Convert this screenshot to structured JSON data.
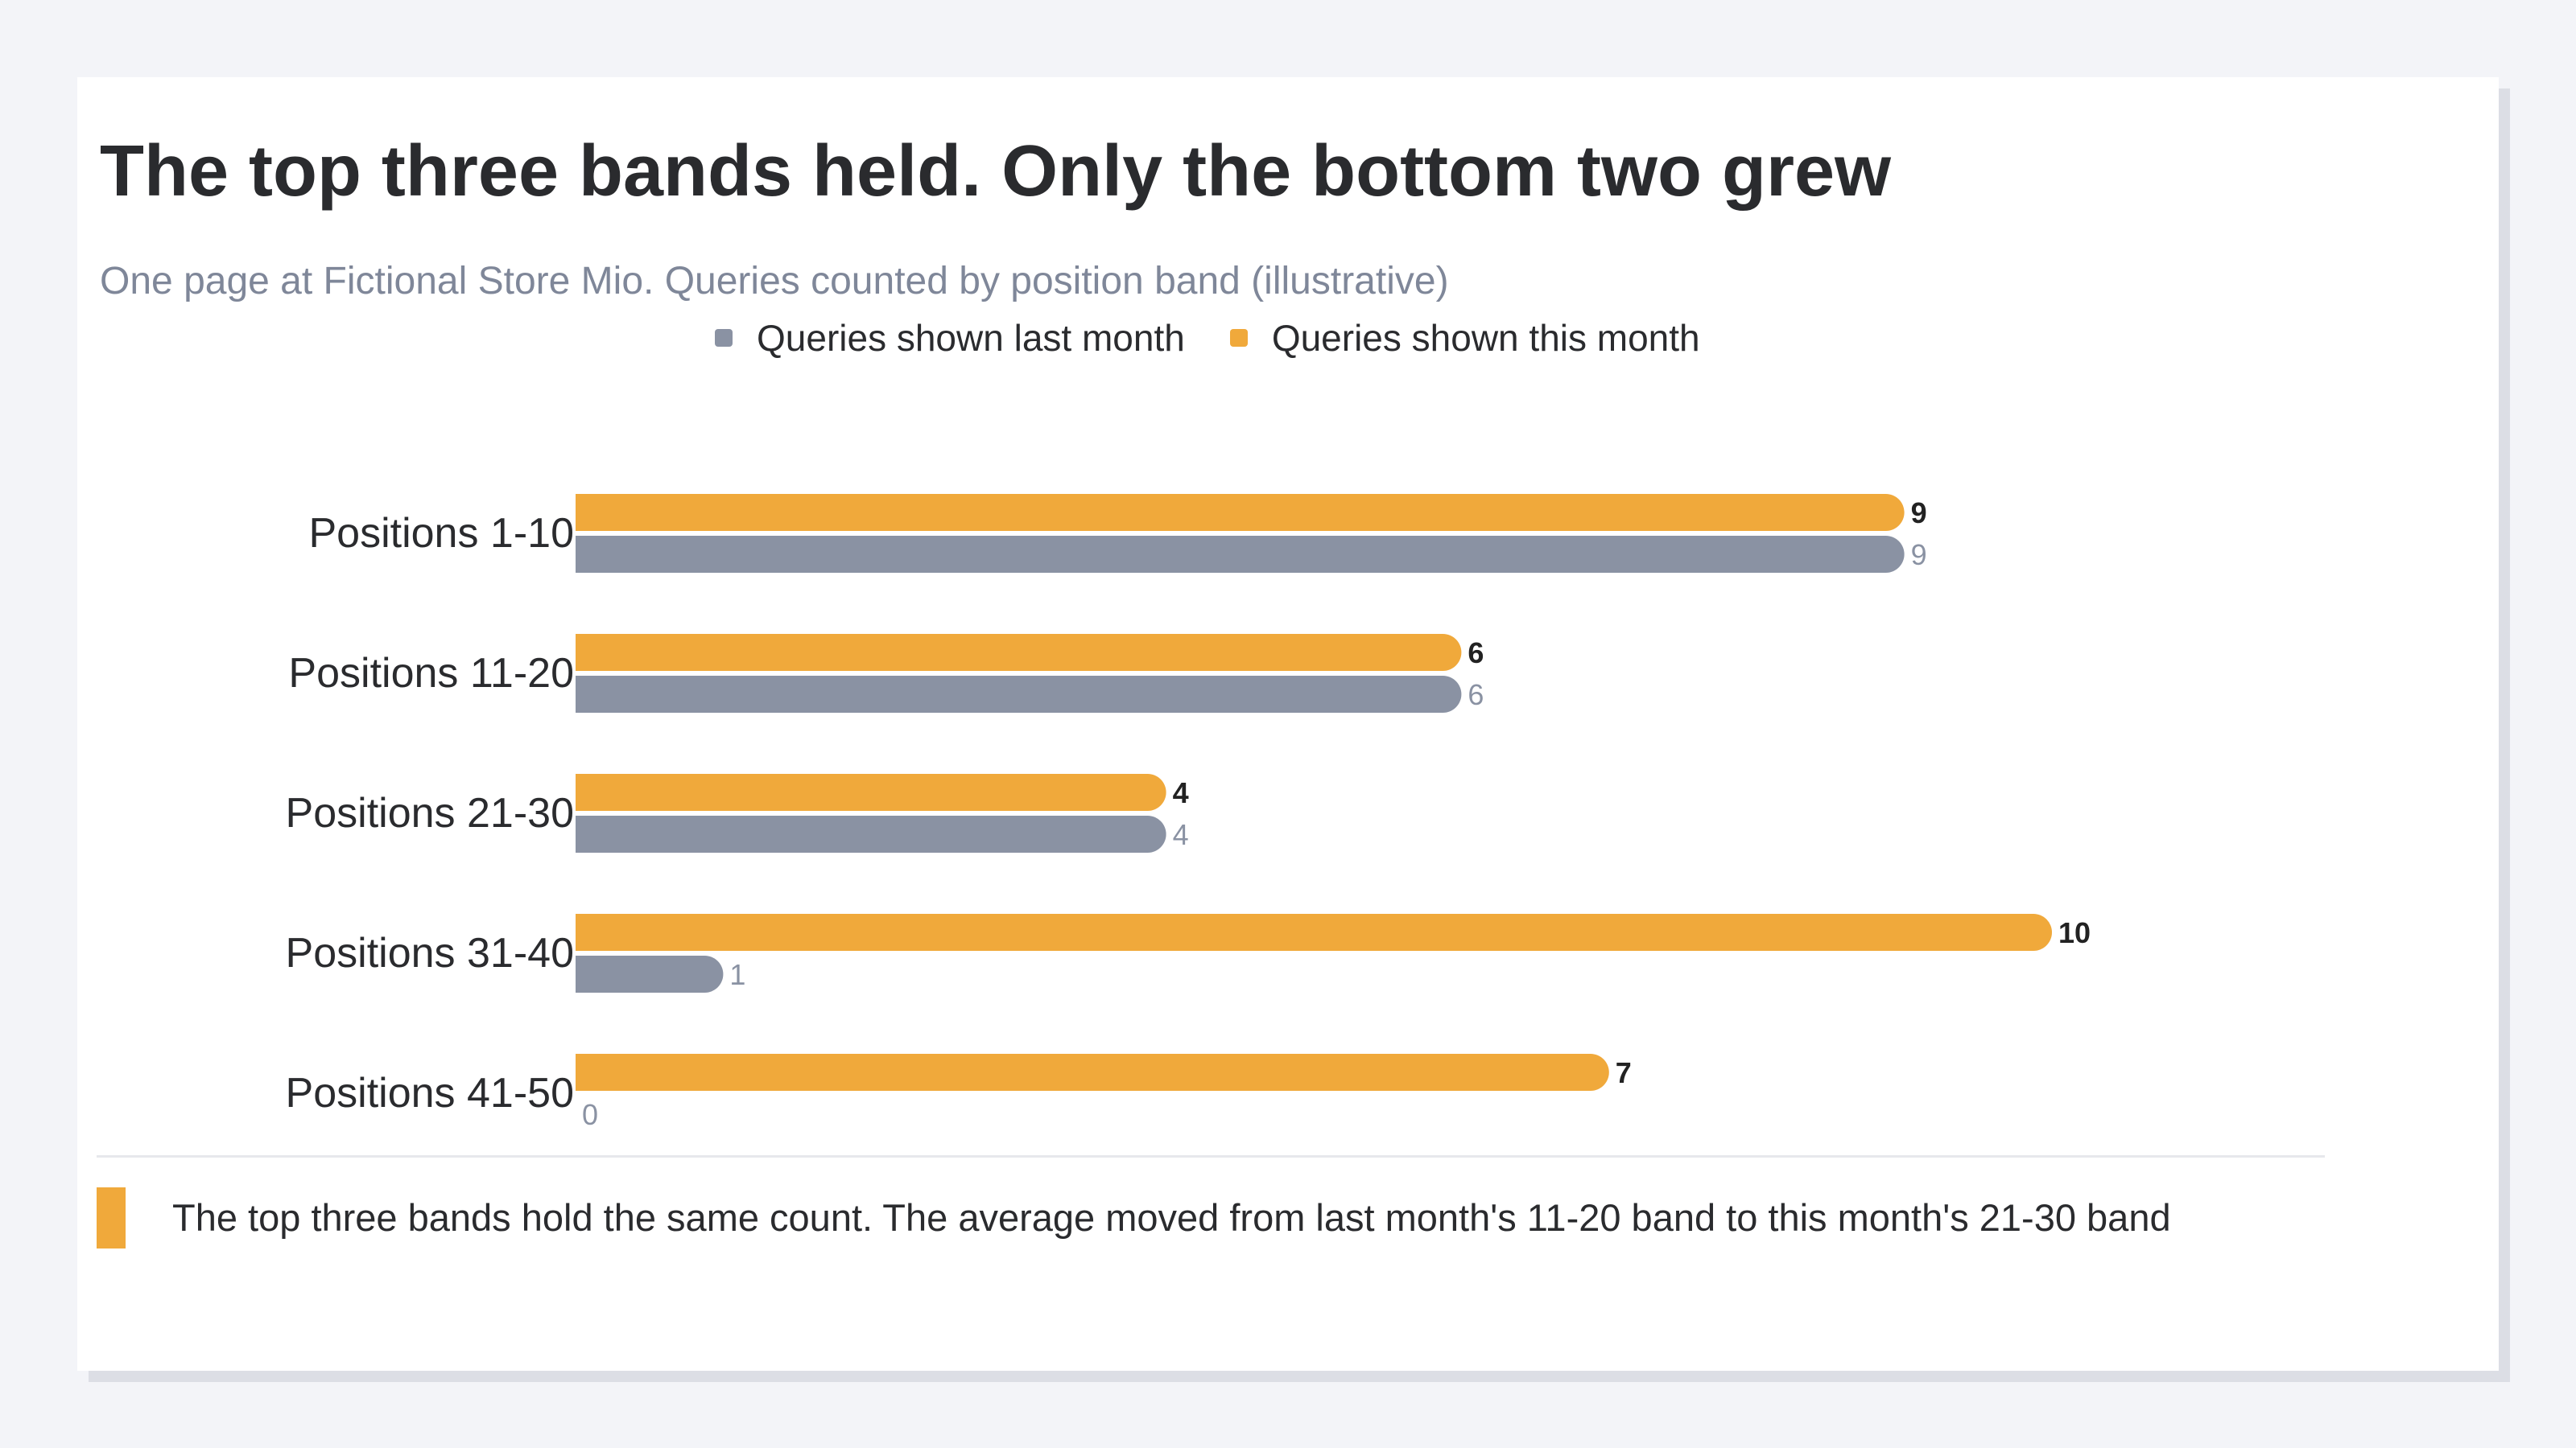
{
  "title": "The top three bands held. Only the bottom two grew",
  "subtitle": "One page at Fictional Store Mio. Queries counted by position band (illustrative)",
  "legend": [
    {
      "label": "Queries shown last month",
      "color": "#8a92a3"
    },
    {
      "label": "Queries shown this month",
      "color": "#f0a93b"
    }
  ],
  "chart_data": {
    "type": "bar",
    "orientation": "horizontal",
    "categories": [
      "Positions 1-10",
      "Positions 11-20",
      "Positions 21-30",
      "Positions 31-40",
      "Positions 41-50"
    ],
    "series": [
      {
        "name": "Queries shown this month",
        "values": [
          9,
          6,
          4,
          10,
          7
        ],
        "color": "#f0a93b",
        "label_color": "#222222",
        "label_bold": true
      },
      {
        "name": "Queries shown last month",
        "values": [
          9,
          6,
          4,
          1,
          0
        ],
        "color": "#8a92a3",
        "label_color": "#8a92a3",
        "label_bold": false
      }
    ],
    "xlim": [
      0,
      10
    ],
    "grid": false,
    "legend_position": "top"
  },
  "note": {
    "text": "The top three bands hold the same count. The average moved from last month's 11-20 band to this month's 21-30 band",
    "accent_color": "#f0a93b"
  }
}
